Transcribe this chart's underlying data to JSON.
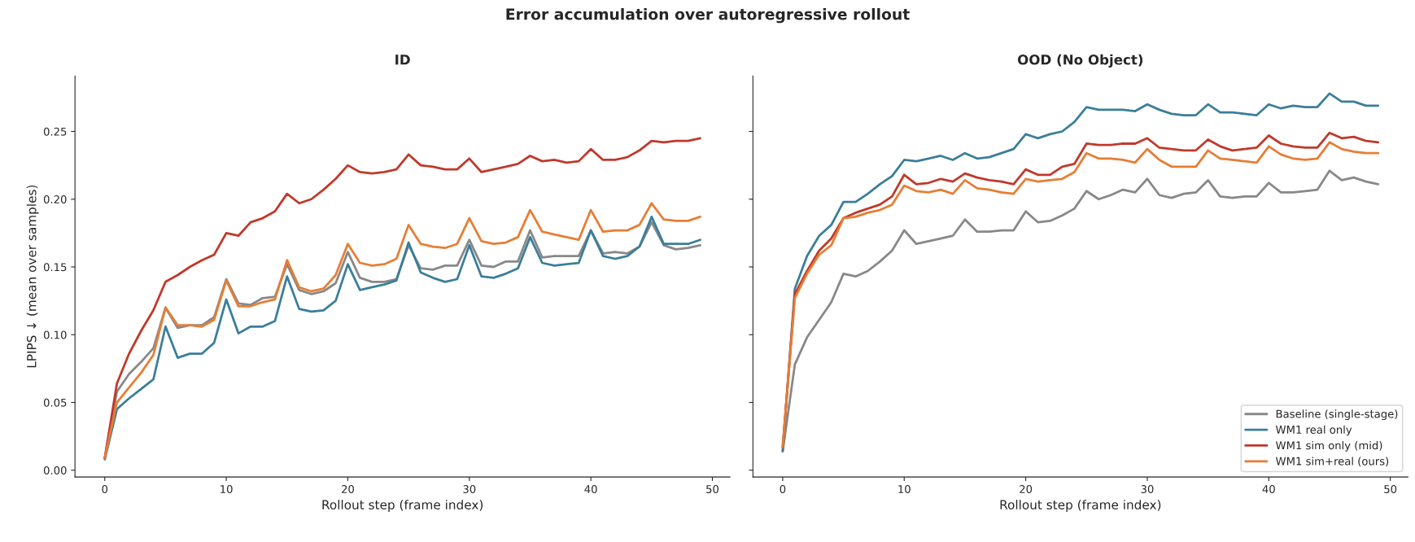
{
  "chart_data": [
    {
      "type": "line",
      "title": "ID",
      "annotations": [
        "Error accumulation over autoregressive rollout"
      ],
      "xlabel": "Rollout step (frame index)",
      "ylabel": "LPIPS ↓ (mean over samples)",
      "x": [
        0,
        1,
        2,
        3,
        4,
        5,
        6,
        7,
        8,
        9,
        10,
        11,
        12,
        13,
        14,
        15,
        16,
        17,
        18,
        19,
        20,
        21,
        22,
        23,
        24,
        25,
        26,
        27,
        28,
        29,
        30,
        31,
        32,
        33,
        34,
        35,
        36,
        37,
        38,
        39,
        40,
        41,
        42,
        43,
        44,
        45,
        46,
        47,
        48,
        49
      ],
      "xlim": [
        -2.45,
        51.45
      ],
      "xticks": [
        0,
        10,
        20,
        30,
        40,
        50
      ],
      "ylim": [
        -0.005,
        0.291
      ],
      "yticks": [
        {
          "value": 0,
          "label": "0.00"
        },
        0.05,
        {
          "value": 0.1,
          "label": "0.10"
        },
        0.15,
        {
          "value": 0.2,
          "label": "0.20"
        },
        0.25
      ],
      "grid": false,
      "legend": false,
      "series": [
        {
          "color": "#888888",
          "values": [
            0.009,
            0.058,
            0.071,
            0.08,
            0.09,
            0.12,
            0.105,
            0.107,
            0.107,
            0.113,
            0.141,
            0.123,
            0.122,
            0.127,
            0.128,
            0.152,
            0.133,
            0.13,
            0.132,
            0.138,
            0.161,
            0.142,
            0.139,
            0.139,
            0.141,
            0.166,
            0.149,
            0.148,
            0.151,
            0.151,
            0.17,
            0.151,
            0.15,
            0.154,
            0.154,
            0.177,
            0.157,
            0.158,
            0.158,
            0.158,
            0.177,
            0.16,
            0.161,
            0.16,
            0.165,
            0.183,
            0.166,
            0.163,
            0.164,
            0.166
          ]
        },
        {
          "color": "#3b7e9a",
          "values": [
            0.008,
            0.045,
            0.053,
            0.06,
            0.067,
            0.106,
            0.083,
            0.086,
            0.086,
            0.094,
            0.126,
            0.101,
            0.106,
            0.106,
            0.11,
            0.143,
            0.119,
            0.117,
            0.118,
            0.125,
            0.152,
            0.133,
            0.135,
            0.137,
            0.14,
            0.168,
            0.146,
            0.142,
            0.139,
            0.141,
            0.166,
            0.143,
            0.142,
            0.145,
            0.149,
            0.172,
            0.153,
            0.151,
            0.152,
            0.153,
            0.177,
            0.158,
            0.156,
            0.158,
            0.165,
            0.187,
            0.167,
            0.167,
            0.167,
            0.17
          ]
        },
        {
          "color": "#c0392b",
          "values": [
            0.009,
            0.064,
            0.086,
            0.103,
            0.118,
            0.139,
            0.144,
            0.15,
            0.155,
            0.159,
            0.175,
            0.173,
            0.183,
            0.186,
            0.191,
            0.204,
            0.197,
            0.2,
            0.207,
            0.215,
            0.225,
            0.22,
            0.219,
            0.22,
            0.222,
            0.233,
            0.225,
            0.224,
            0.222,
            0.222,
            0.23,
            0.22,
            0.222,
            0.224,
            0.226,
            0.232,
            0.228,
            0.229,
            0.227,
            0.228,
            0.237,
            0.229,
            0.229,
            0.231,
            0.236,
            0.243,
            0.242,
            0.243,
            0.243,
            0.245
          ]
        },
        {
          "color": "#e67e35",
          "values": [
            0.009,
            0.05,
            0.061,
            0.072,
            0.085,
            0.12,
            0.107,
            0.107,
            0.106,
            0.111,
            0.14,
            0.121,
            0.121,
            0.124,
            0.126,
            0.155,
            0.135,
            0.132,
            0.134,
            0.144,
            0.167,
            0.153,
            0.151,
            0.152,
            0.156,
            0.181,
            0.167,
            0.165,
            0.164,
            0.167,
            0.186,
            0.169,
            0.167,
            0.168,
            0.172,
            0.192,
            0.176,
            0.174,
            0.172,
            0.17,
            0.192,
            0.176,
            0.177,
            0.177,
            0.181,
            0.197,
            0.185,
            0.184,
            0.184,
            0.187
          ]
        }
      ]
    },
    {
      "type": "line",
      "title": "OOD (No Object)",
      "xlabel": "Rollout step (frame index)",
      "x": [
        0,
        1,
        2,
        3,
        4,
        5,
        6,
        7,
        8,
        9,
        10,
        11,
        12,
        13,
        14,
        15,
        16,
        17,
        18,
        19,
        20,
        21,
        22,
        23,
        24,
        25,
        26,
        27,
        28,
        29,
        30,
        31,
        32,
        33,
        34,
        35,
        36,
        37,
        38,
        39,
        40,
        41,
        42,
        43,
        44,
        45,
        46,
        47,
        48,
        49
      ],
      "xlim": [
        -2.45,
        51.45
      ],
      "xticks": [
        0,
        10,
        20,
        30,
        40,
        50
      ],
      "ylim": [
        -0.005,
        0.291
      ],
      "yticks": [
        {
          "value": 0,
          "label": null
        },
        {
          "value": 0.05,
          "label": null
        },
        {
          "value": 0.1,
          "label": null
        },
        {
          "value": 0.15,
          "label": null
        },
        {
          "value": 0.2,
          "label": null
        },
        {
          "value": 0.25,
          "label": null
        }
      ],
      "tick_labels": "x",
      "grid": false,
      "legend": "bottom right",
      "series": [
        {
          "name": "Baseline (single-stage)",
          "color": "#888888",
          "values": [
            0.014,
            0.078,
            0.098,
            0.111,
            0.124,
            0.145,
            0.143,
            0.147,
            0.154,
            0.162,
            0.177,
            0.167,
            0.169,
            0.171,
            0.173,
            0.185,
            0.176,
            0.176,
            0.177,
            0.177,
            0.191,
            0.183,
            0.184,
            0.188,
            0.193,
            0.206,
            0.2,
            0.203,
            0.207,
            0.205,
            0.215,
            0.203,
            0.201,
            0.204,
            0.205,
            0.214,
            0.202,
            0.201,
            0.202,
            0.202,
            0.212,
            0.205,
            0.205,
            0.206,
            0.207,
            0.221,
            0.214,
            0.216,
            0.213,
            0.211
          ]
        },
        {
          "name": "WM1 real only",
          "color": "#3b7e9a",
          "values": [
            0.014,
            0.134,
            0.158,
            0.173,
            0.181,
            0.198,
            0.198,
            0.204,
            0.211,
            0.217,
            0.229,
            0.228,
            0.23,
            0.232,
            0.229,
            0.234,
            0.23,
            0.231,
            0.234,
            0.237,
            0.248,
            0.245,
            0.248,
            0.25,
            0.257,
            0.268,
            0.266,
            0.266,
            0.266,
            0.265,
            0.27,
            0.266,
            0.263,
            0.262,
            0.262,
            0.27,
            0.264,
            0.264,
            0.263,
            0.262,
            0.27,
            0.267,
            0.269,
            0.268,
            0.268,
            0.278,
            0.272,
            0.272,
            0.269,
            0.269
          ]
        },
        {
          "name": "WM1 sim only (mid)",
          "color": "#c0392b",
          "values": [
            0.017,
            0.13,
            0.147,
            0.162,
            0.171,
            0.186,
            0.19,
            0.193,
            0.196,
            0.202,
            0.218,
            0.211,
            0.212,
            0.215,
            0.213,
            0.219,
            0.216,
            0.214,
            0.213,
            0.211,
            0.222,
            0.218,
            0.218,
            0.224,
            0.226,
            0.241,
            0.24,
            0.24,
            0.241,
            0.241,
            0.245,
            0.238,
            0.237,
            0.236,
            0.236,
            0.244,
            0.239,
            0.236,
            0.237,
            0.238,
            0.247,
            0.241,
            0.239,
            0.238,
            0.238,
            0.249,
            0.245,
            0.246,
            0.243,
            0.242
          ]
        },
        {
          "name": "WM1 sim+real (ours)",
          "color": "#e67e35",
          "values": [
            0.017,
            0.127,
            0.145,
            0.159,
            0.166,
            0.186,
            0.187,
            0.19,
            0.192,
            0.196,
            0.21,
            0.206,
            0.205,
            0.207,
            0.204,
            0.214,
            0.208,
            0.207,
            0.205,
            0.204,
            0.215,
            0.213,
            0.214,
            0.215,
            0.22,
            0.234,
            0.23,
            0.23,
            0.229,
            0.227,
            0.237,
            0.229,
            0.224,
            0.224,
            0.224,
            0.236,
            0.23,
            0.229,
            0.228,
            0.227,
            0.239,
            0.233,
            0.23,
            0.229,
            0.23,
            0.242,
            0.237,
            0.235,
            0.234,
            0.234
          ]
        }
      ]
    }
  ]
}
